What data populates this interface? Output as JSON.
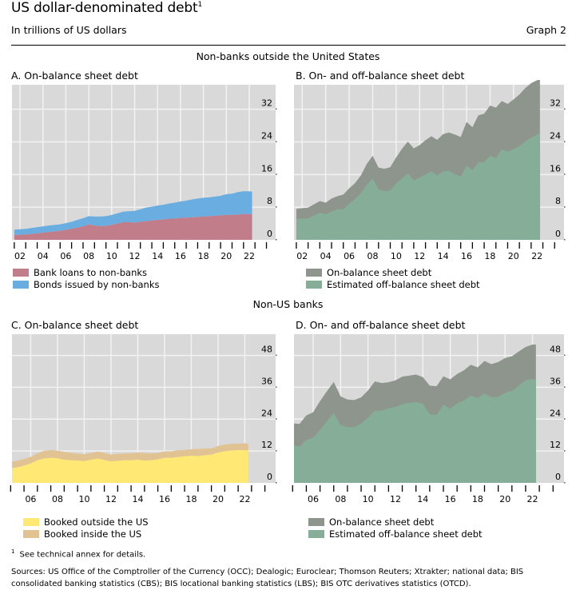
{
  "header": {
    "title": "US dollar-denominated debt",
    "title_sup": "1",
    "subtitle": "In trillions of US dollars",
    "graph_label": "Graph 2"
  },
  "sections": {
    "top": "Non-banks outside the United States",
    "bottom": "Non-US banks"
  },
  "footnote": {
    "marker": "1",
    "text": "See technical annex for details."
  },
  "sources": "Sources: US Office of the Comptroller of the Currency (OCC); Dealogic; Euroclear; Thomson Reuters; Xtrakter; national data; BIS consolidated banking statistics (CBS); BIS locational banking statistics (LBS); BIS OTC derivatives statistics (OTCD).",
  "colors": {
    "plot_bg": "#d9d9d9",
    "grid": "#f2f2f2",
    "bank_loans": "#c27d8b",
    "bonds": "#6aade0",
    "on_balance": "#8e958d",
    "off_balance": "#86ad97",
    "booked_outside": "#ffe873",
    "booked_inside": "#e1c393"
  },
  "chart_data": [
    {
      "id": "A",
      "type": "area",
      "stacked": true,
      "title": "A. On-balance sheet debt",
      "xlabel": "",
      "ylabel": "",
      "xlim": [
        2001.3,
        2024.3
      ],
      "ylim": [
        0,
        38
      ],
      "yticks": [
        0,
        8,
        16,
        24,
        32
      ],
      "xtick_labels": [
        "02",
        "04",
        "06",
        "08",
        "10",
        "12",
        "14",
        "16",
        "18",
        "20",
        "22"
      ],
      "grid": true,
      "legend_position": "bottom-left",
      "x": [
        2001.5,
        2002.5,
        2003.5,
        2004.5,
        2005.5,
        2006.5,
        2007,
        2007.5,
        2008,
        2008.5,
        2009,
        2009.5,
        2010,
        2010.5,
        2011,
        2011.5,
        2012,
        2012.5,
        2013,
        2013.5,
        2014,
        2014.5,
        2015,
        2015.5,
        2016,
        2016.5,
        2017,
        2017.5,
        2018,
        2018.5,
        2019,
        2019.5,
        2020,
        2020.5,
        2021,
        2021.5,
        2022,
        2022.25
      ],
      "series": [
        {
          "name": "Bank loans to non-banks",
          "color_key": "bank_loans",
          "values": [
            1.2,
            1.3,
            1.6,
            1.9,
            2.2,
            2.7,
            3.0,
            3.3,
            3.8,
            3.5,
            3.4,
            3.4,
            3.7,
            4.0,
            4.3,
            4.3,
            4.2,
            4.4,
            4.6,
            4.7,
            4.9,
            5.0,
            5.2,
            5.2,
            5.4,
            5.4,
            5.5,
            5.6,
            5.7,
            5.8,
            5.9,
            6.0,
            6.1,
            6.1,
            6.2,
            6.3,
            6.3,
            6.3
          ]
        },
        {
          "name": "Bonds issued by non-banks",
          "color_key": "bonds",
          "values": [
            1.3,
            1.4,
            1.5,
            1.6,
            1.6,
            1.7,
            1.9,
            2.0,
            2.0,
            2.2,
            2.3,
            2.4,
            2.4,
            2.5,
            2.6,
            2.7,
            2.9,
            3.1,
            3.3,
            3.4,
            3.5,
            3.6,
            3.7,
            3.9,
            4.0,
            4.2,
            4.4,
            4.5,
            4.6,
            4.6,
            4.7,
            4.8,
            5.1,
            5.2,
            5.5,
            5.6,
            5.6,
            5.5
          ]
        }
      ]
    },
    {
      "id": "B",
      "type": "area",
      "stacked": false,
      "title": "B. On- and off-balance sheet debt",
      "xlabel": "",
      "ylabel": "",
      "xlim": [
        2001.3,
        2024.3
      ],
      "ylim": [
        0,
        38
      ],
      "yticks": [
        0,
        8,
        16,
        24,
        32
      ],
      "xtick_labels": [
        "02",
        "04",
        "06",
        "08",
        "10",
        "12",
        "14",
        "16",
        "18",
        "20",
        "22"
      ],
      "grid": true,
      "legend_position": "bottom-left",
      "x": [
        2001.5,
        2002.5,
        2003.5,
        2004,
        2004.5,
        2005,
        2005.5,
        2006,
        2006.5,
        2007,
        2007.5,
        2008,
        2008.5,
        2009,
        2009.5,
        2010,
        2010.5,
        2011,
        2011.5,
        2012,
        2012.5,
        2013,
        2013.5,
        2014,
        2014.5,
        2015,
        2015.5,
        2016,
        2016.5,
        2017,
        2017.5,
        2018,
        2018.5,
        2019,
        2019.5,
        2020,
        2020.5,
        2021,
        2021.5,
        2022,
        2022.25
      ],
      "series": [
        {
          "name": "On-balance sheet debt",
          "color_key": "on_balance",
          "values": [
            7.6,
            7.9,
            9.5,
            9.1,
            10.1,
            10.7,
            11.1,
            12.6,
            13.9,
            15.8,
            18.6,
            20.6,
            17.7,
            17.4,
            17.8,
            20.2,
            22.3,
            24.1,
            22.4,
            23.2,
            24.4,
            25.4,
            24.5,
            25.9,
            26.3,
            25.8,
            25.2,
            28.9,
            27.6,
            30.5,
            30.9,
            32.9,
            32.4,
            34.0,
            33.3,
            34.4,
            35.6,
            37.2,
            38.4,
            39.1,
            39.3
          ]
        },
        {
          "name": "Estimated off-balance sheet debt",
          "color_key": "off_balance",
          "values": [
            5.1,
            5.3,
            6.6,
            6.3,
            6.9,
            7.5,
            7.5,
            8.8,
            10.0,
            11.4,
            13.5,
            15.0,
            12.4,
            11.9,
            12.1,
            13.8,
            15.0,
            16.3,
            14.6,
            15.3,
            16.0,
            16.8,
            15.8,
            16.8,
            16.9,
            16.1,
            15.5,
            18.2,
            17.1,
            19.0,
            19.0,
            20.6,
            20.0,
            22.2,
            21.6,
            22.2,
            23.0,
            24.1,
            25.0,
            25.8,
            26.3
          ]
        }
      ]
    },
    {
      "id": "C",
      "type": "area",
      "stacked": true,
      "title": "C. On-balance sheet debt",
      "xlabel": "",
      "ylabel": "",
      "xlim": [
        2004.6,
        2024.3
      ],
      "ylim": [
        0,
        56
      ],
      "yticks": [
        0,
        12,
        24,
        36,
        48
      ],
      "xtick_labels": [
        "06",
        "08",
        "10",
        "12",
        "14",
        "16",
        "18",
        "20",
        "22"
      ],
      "grid": true,
      "legend_position": "bottom-left",
      "x": [
        2004.6,
        2005,
        2005.5,
        2006,
        2006.5,
        2007,
        2007.5,
        2008,
        2008.5,
        2009,
        2009.5,
        2010,
        2010.5,
        2011,
        2011.5,
        2012,
        2012.5,
        2013,
        2013.5,
        2014,
        2014.5,
        2015,
        2015.5,
        2016,
        2016.5,
        2017,
        2017.5,
        2018,
        2018.5,
        2019,
        2019.5,
        2020,
        2020.5,
        2021,
        2021.5,
        2022,
        2022.25
      ],
      "series": [
        {
          "name": "Booked outside the US",
          "color_key": "booked_outside",
          "values": [
            5.6,
            5.8,
            6.5,
            7.3,
            8.5,
            9.2,
            9.4,
            9.3,
            8.7,
            8.5,
            8.4,
            8.2,
            8.7,
            9.2,
            8.6,
            8.1,
            8.3,
            8.5,
            8.5,
            8.7,
            8.4,
            8.5,
            8.8,
            9.4,
            9.4,
            9.7,
            10.0,
            10.2,
            10.1,
            10.4,
            10.6,
            11.4,
            11.9,
            12.2,
            12.3,
            12.3,
            12.2
          ]
        },
        {
          "name": "Booked inside the US",
          "color_key": "booked_inside",
          "values": [
            2.4,
            2.5,
            2.5,
            2.5,
            2.6,
            2.9,
            2.9,
            2.8,
            3.0,
            2.8,
            2.6,
            2.6,
            2.5,
            2.6,
            2.7,
            2.6,
            2.6,
            2.6,
            2.6,
            2.7,
            2.8,
            2.6,
            2.4,
            2.5,
            2.5,
            2.6,
            2.4,
            2.5,
            2.7,
            2.5,
            2.4,
            2.5,
            2.5,
            2.5,
            2.5,
            2.6,
            2.5
          ]
        }
      ]
    },
    {
      "id": "D",
      "type": "area",
      "stacked": false,
      "title": "D. On- and off-balance sheet debt",
      "xlabel": "",
      "ylabel": "",
      "xlim": [
        2004.6,
        2024.3
      ],
      "ylim": [
        0,
        56
      ],
      "yticks": [
        0,
        12,
        24,
        36,
        48
      ],
      "xtick_labels": [
        "06",
        "08",
        "10",
        "12",
        "14",
        "16",
        "18",
        "20",
        "22"
      ],
      "grid": true,
      "legend_position": "bottom-left",
      "x": [
        2004.6,
        2005,
        2005.5,
        2006,
        2006.5,
        2007,
        2007.5,
        2008,
        2008.5,
        2009,
        2009.5,
        2010,
        2010.5,
        2011,
        2011.5,
        2012,
        2012.5,
        2013,
        2013.5,
        2014,
        2014.5,
        2015,
        2015.5,
        2016,
        2016.5,
        2017,
        2017.5,
        2018,
        2018.5,
        2019,
        2019.5,
        2020,
        2020.5,
        2021,
        2021.5,
        2022,
        2022.25
      ],
      "series": [
        {
          "name": "On-balance sheet debt",
          "color_key": "on_balance",
          "values": [
            22.4,
            22.2,
            25.4,
            26.6,
            30.8,
            34.5,
            38.0,
            32.6,
            31.4,
            31.2,
            32.2,
            34.8,
            38.2,
            37.6,
            37.9,
            38.6,
            40.0,
            40.4,
            40.8,
            39.8,
            36.6,
            36.4,
            40.1,
            39.0,
            41.0,
            42.4,
            44.5,
            43.5,
            45.9,
            44.7,
            45.5,
            47.0,
            47.7,
            49.5,
            51.2,
            52.1,
            52.1
          ]
        },
        {
          "name": "Estimated off-balance sheet debt",
          "color_key": "off_balance",
          "values": [
            14.1,
            13.7,
            16.2,
            17.0,
            20.0,
            23.2,
            26.3,
            21.8,
            21.0,
            21.0,
            22.3,
            24.6,
            27.2,
            27.2,
            28.1,
            28.6,
            29.6,
            30.2,
            30.4,
            29.8,
            25.9,
            25.6,
            29.4,
            27.9,
            29.9,
            31.0,
            32.8,
            32.0,
            33.7,
            32.3,
            32.4,
            33.9,
            34.7,
            36.6,
            38.6,
            39.0,
            39.0
          ]
        }
      ]
    }
  ]
}
